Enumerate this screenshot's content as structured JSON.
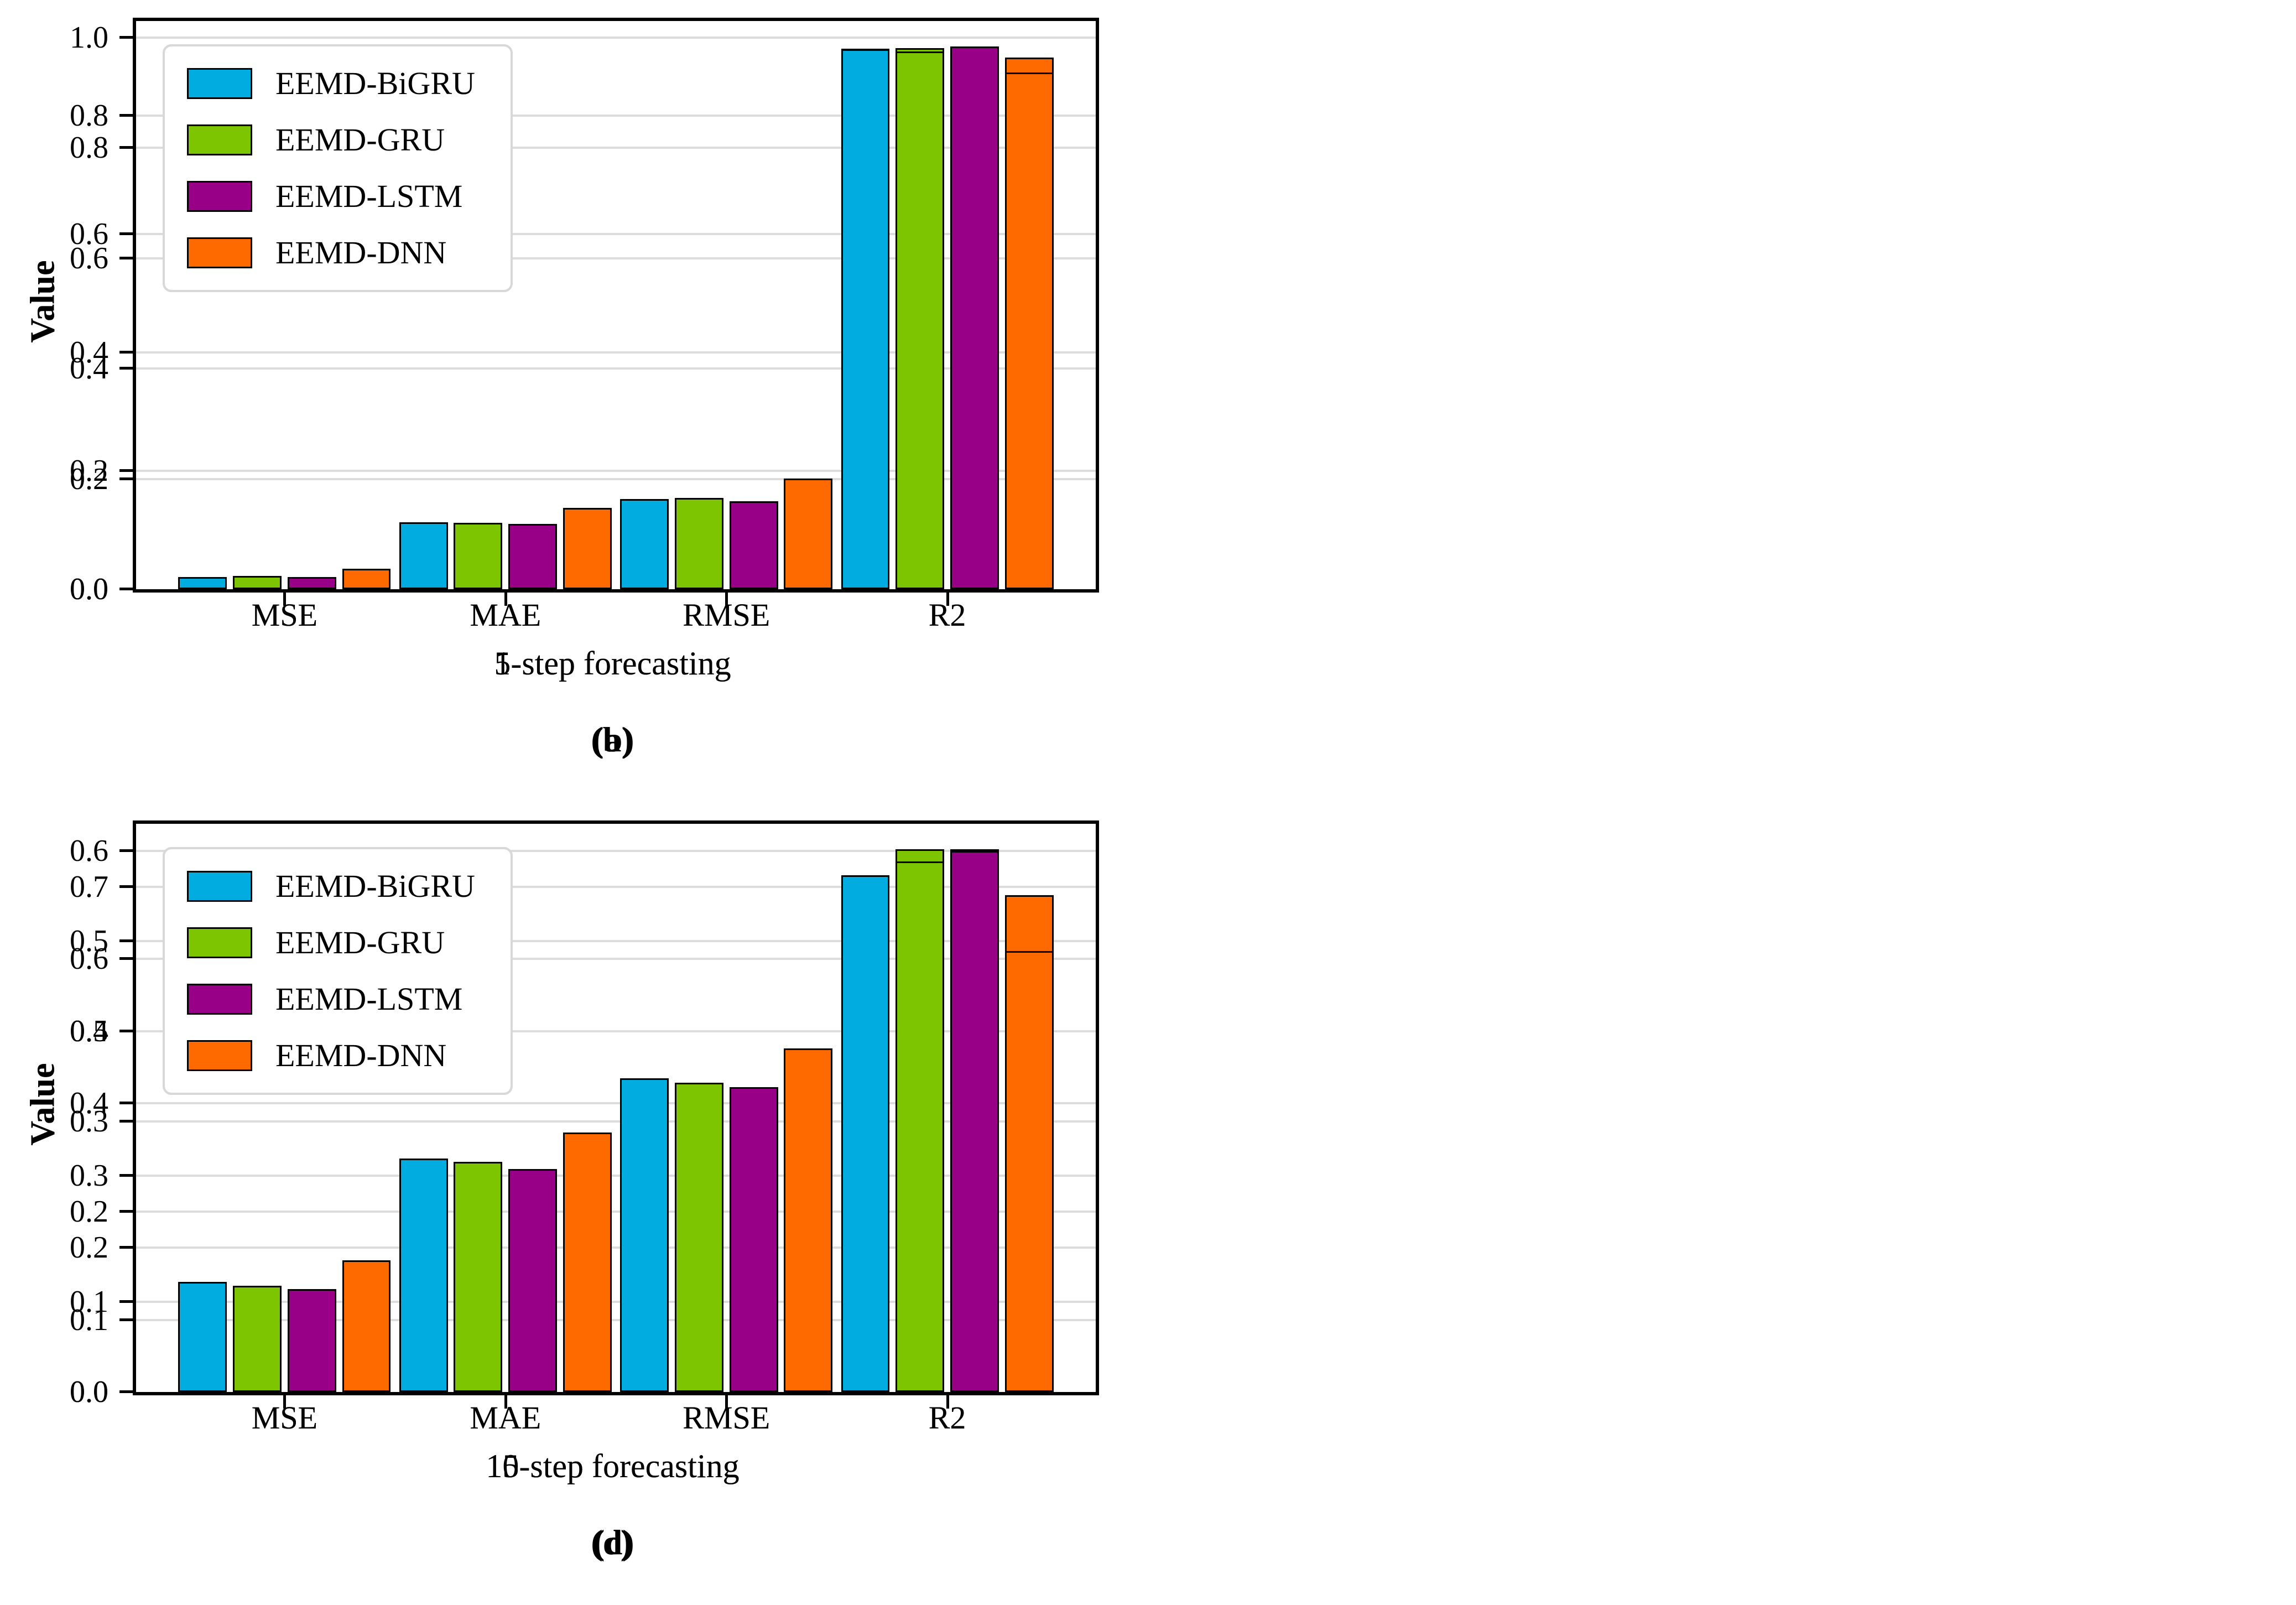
{
  "figure": {
    "ylabel": "Value",
    "legend_entries": [
      "EEMD-BiGRU",
      "EEMD-GRU",
      "EEMD-LSTM",
      "EEMD-DNN"
    ],
    "colors": {
      "series": [
        "#00ACE0",
        "#7CC500",
        "#990088",
        "#FF6A00"
      ],
      "gridline": "#dcdcdc",
      "bar_edge": "#000000",
      "frame": "#000000",
      "legend_border": "#d8d8d8"
    }
  },
  "chart_data": [
    {
      "type": "bar",
      "xlabel": "1-step forecasting",
      "caption": "(a)",
      "ylabel": "Value",
      "categories": [
        "MSE",
        "MAE",
        "RMSE",
        "R2"
      ],
      "series": [
        {
          "name": "EEMD-BiGRU",
          "values": [
            0.006,
            0.06,
            0.077,
            0.98
          ]
        },
        {
          "name": "EEMD-GRU",
          "values": [
            0.006,
            0.057,
            0.074,
            0.981
          ]
        },
        {
          "name": "EEMD-LSTM",
          "values": [
            0.006,
            0.054,
            0.072,
            0.982
          ]
        },
        {
          "name": "EEMD-DNN",
          "values": [
            0.01,
            0.079,
            0.1,
            0.964
          ]
        }
      ],
      "yticks": [
        0.0,
        0.2,
        0.4,
        0.6,
        0.8,
        1.0
      ],
      "ylim": [
        0,
        1.03
      ],
      "grid": true,
      "legend_position": "upper left"
    },
    {
      "type": "bar",
      "xlabel": "5-step forecasting",
      "caption": "(b)",
      "ylabel": "Value",
      "categories": [
        "MSE",
        "MAE",
        "RMSE",
        "R2"
      ],
      "series": [
        {
          "name": "EEMD-BiGRU",
          "values": [
            0.021,
            0.113,
            0.152,
            0.912
          ]
        },
        {
          "name": "EEMD-GRU",
          "values": [
            0.022,
            0.112,
            0.154,
            0.909
          ]
        },
        {
          "name": "EEMD-LSTM",
          "values": [
            0.021,
            0.11,
            0.149,
            0.917
          ]
        },
        {
          "name": "EEMD-DNN",
          "values": [
            0.035,
            0.137,
            0.187,
            0.873
          ]
        }
      ],
      "yticks": [
        0.0,
        0.2,
        0.4,
        0.6,
        0.8
      ],
      "ylim": [
        0,
        0.96
      ],
      "grid": true,
      "legend_position": "upper left"
    },
    {
      "type": "bar",
      "xlabel": "10-step forecasting",
      "caption": "(c)",
      "ylabel": "Value",
      "categories": [
        "MSE",
        "MAE",
        "RMSE",
        "R2"
      ],
      "series": [
        {
          "name": "EEMD-BiGRU",
          "values": [
            0.079,
            0.202,
            0.281,
            0.71
          ]
        },
        {
          "name": "EEMD-GRU",
          "values": [
            0.068,
            0.185,
            0.26,
            0.752
          ]
        },
        {
          "name": "EEMD-LSTM",
          "values": [
            0.068,
            0.188,
            0.26,
            0.752
          ]
        },
        {
          "name": "EEMD-DNN",
          "values": [
            0.085,
            0.218,
            0.291,
            0.688
          ]
        }
      ],
      "yticks": [
        0.0,
        0.1,
        0.2,
        0.3,
        0.4,
        0.5,
        0.6,
        0.7
      ],
      "ylim": [
        0,
        0.787
      ],
      "grid": true,
      "legend_position": "upper left"
    },
    {
      "type": "bar",
      "xlabel": "15-step forecasting",
      "caption": "(d)",
      "ylabel": "Value",
      "categories": [
        "MSE",
        "MAE",
        "RMSE",
        "R2"
      ],
      "series": [
        {
          "name": "EEMD-BiGRU",
          "values": [
            0.122,
            0.259,
            0.348,
            0.573
          ]
        },
        {
          "name": "EEMD-GRU",
          "values": [
            0.118,
            0.255,
            0.343,
            0.588
          ]
        },
        {
          "name": "EEMD-LSTM",
          "values": [
            0.114,
            0.247,
            0.338,
            0.6
          ]
        },
        {
          "name": "EEMD-DNN",
          "values": [
            0.146,
            0.288,
            0.381,
            0.489
          ]
        }
      ],
      "yticks": [
        0.0,
        0.1,
        0.2,
        0.3,
        0.4,
        0.5,
        0.6
      ],
      "ylim": [
        0,
        0.63
      ],
      "grid": true,
      "legend_position": "upper left"
    }
  ]
}
